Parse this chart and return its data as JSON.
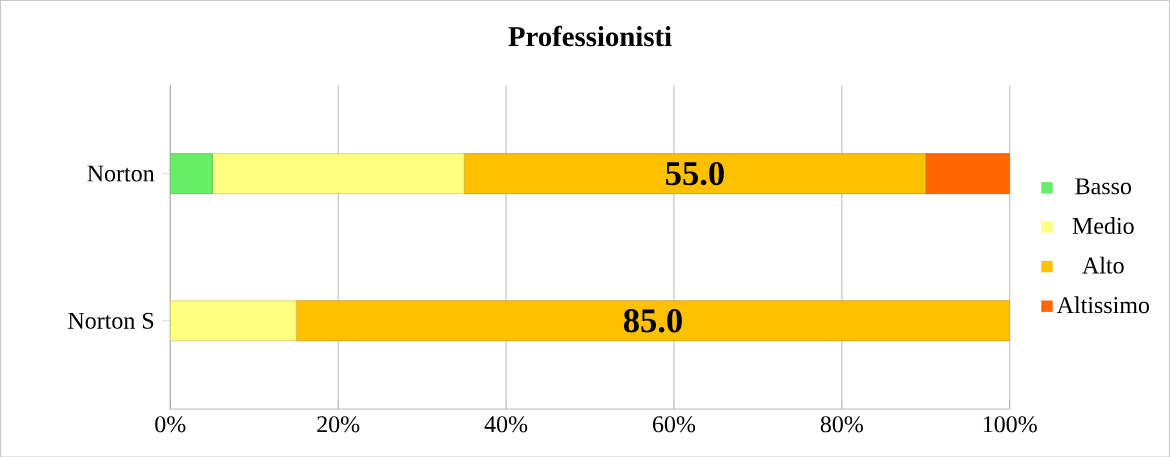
{
  "chart_data": {
    "type": "bar",
    "orientation": "horizontal",
    "stacked": true,
    "title": "Professionisti",
    "categories": [
      "Norton",
      "Norton S"
    ],
    "series": [
      {
        "name": "Basso",
        "color": "#66ee66",
        "values": [
          5,
          0
        ]
      },
      {
        "name": "Medio",
        "color": "#ffff80",
        "values": [
          30,
          15
        ]
      },
      {
        "name": "Alto",
        "color": "#ffc000",
        "values": [
          55,
          85
        ],
        "value_labels": [
          "55.0",
          "85.0"
        ]
      },
      {
        "name": "Altissimo",
        "color": "#ff6600",
        "values": [
          10,
          0
        ]
      }
    ],
    "xlim": [
      0,
      100
    ],
    "xticks": [
      {
        "value": 0,
        "label": "0%"
      },
      {
        "value": 20,
        "label": "20%"
      },
      {
        "value": 40,
        "label": "40%"
      },
      {
        "value": 60,
        "label": "60%"
      },
      {
        "value": 80,
        "label": "80%"
      },
      {
        "value": 100,
        "label": "100%"
      }
    ],
    "grid": "x",
    "legend": "right"
  }
}
